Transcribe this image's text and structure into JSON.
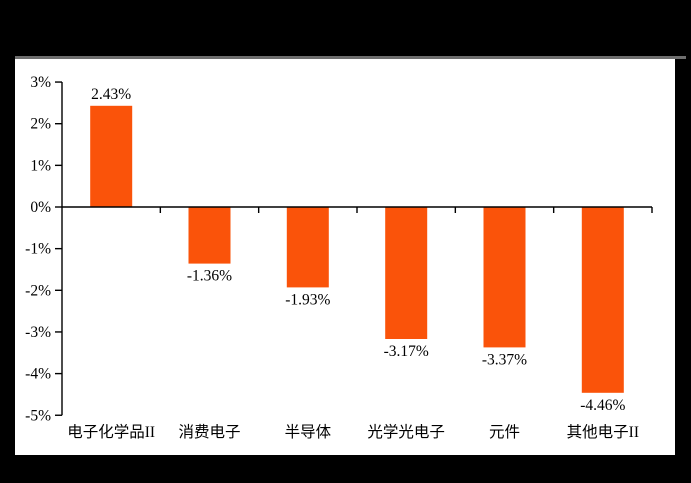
{
  "frame": {
    "background_color": "#000000",
    "panel_color": "#ffffff",
    "top_rule_color": "#6e6e6e"
  },
  "chart_data": {
    "type": "bar",
    "title": "",
    "xlabel": "",
    "ylabel": "",
    "categories": [
      "电子化学品II",
      "消费电子",
      "半导体",
      "光学光电子",
      "元件",
      "其他电子II"
    ],
    "values": [
      2.43,
      -1.36,
      -1.93,
      -3.17,
      -3.37,
      -4.46
    ],
    "data_labels": [
      "2.43%",
      "-1.36%",
      "-1.93%",
      "-3.17%",
      "-3.37%",
      "-4.46%"
    ],
    "y_tick_values": [
      3,
      2,
      1,
      0,
      -1,
      -2,
      -3,
      -4,
      -5
    ],
    "y_tick_labels": [
      "3%",
      "2%",
      "1%",
      "0%",
      "-1%",
      "-2%",
      "-3%",
      "-4%",
      "-5%"
    ],
    "ylim": [
      -5,
      3
    ],
    "grid": false,
    "legend": null,
    "bar_color": "#FA530A",
    "axis_color": "#000000",
    "text_color": "#000000"
  }
}
